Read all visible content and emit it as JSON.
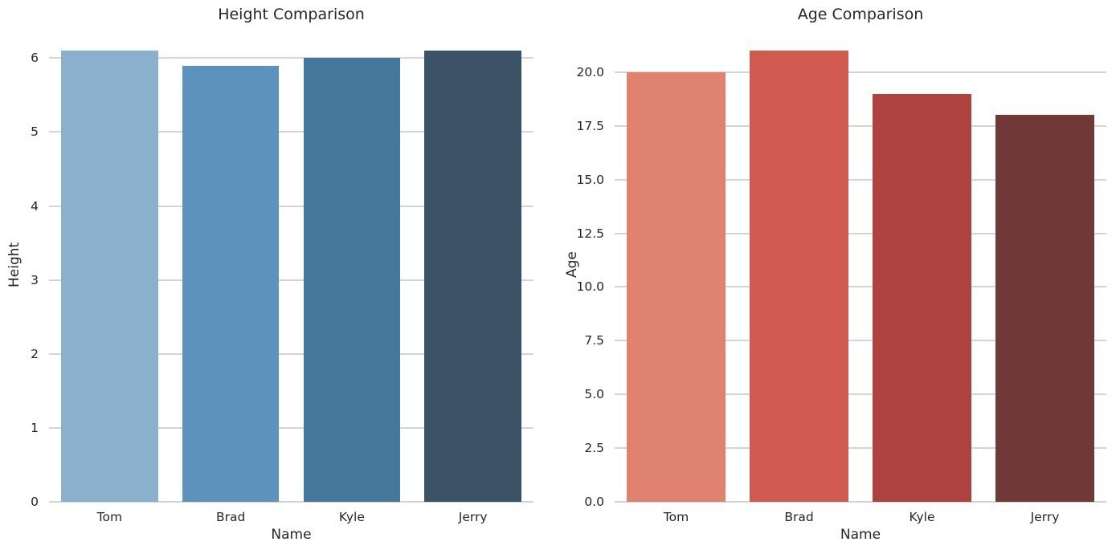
{
  "figure": {
    "background": "#ffffff",
    "text_color": "#262626",
    "grid_color": "#d4d4d4"
  },
  "chart_data": [
    {
      "type": "bar",
      "title": "Height Comparison",
      "xlabel": "Name",
      "ylabel": "Height",
      "categories": [
        "Tom",
        "Brad",
        "Kyle",
        "Jerry"
      ],
      "values": [
        6.1,
        5.9,
        6.0,
        6.1
      ],
      "bar_colors": [
        "#8bb0ce",
        "#5c92bc",
        "#45779b",
        "#3c5266"
      ],
      "ylim": [
        0,
        6.405
      ],
      "yticks": [
        0,
        1,
        2,
        3,
        4,
        5,
        6
      ],
      "ytick_labels": [
        "0",
        "1",
        "2",
        "3",
        "4",
        "5",
        "6"
      ],
      "grid": "horizontal",
      "legend_position": "none",
      "bar_width_fraction": 0.8
    },
    {
      "type": "bar",
      "title": "Age Comparison",
      "xlabel": "Name",
      "ylabel": "Age",
      "categories": [
        "Tom",
        "Brad",
        "Kyle",
        "Jerry"
      ],
      "values": [
        20,
        21,
        19,
        18
      ],
      "bar_colors": [
        "#df8270",
        "#d05a50",
        "#ad423e",
        "#703937"
      ],
      "ylim": [
        0,
        22.05
      ],
      "yticks": [
        0,
        2.5,
        5,
        7.5,
        10,
        12.5,
        15,
        17.5,
        20
      ],
      "ytick_labels": [
        "0.0",
        "2.5",
        "5.0",
        "7.5",
        "10.0",
        "12.5",
        "15.0",
        "17.5",
        "20.0"
      ],
      "grid": "horizontal",
      "legend_position": "none",
      "bar_width_fraction": 0.8
    }
  ]
}
